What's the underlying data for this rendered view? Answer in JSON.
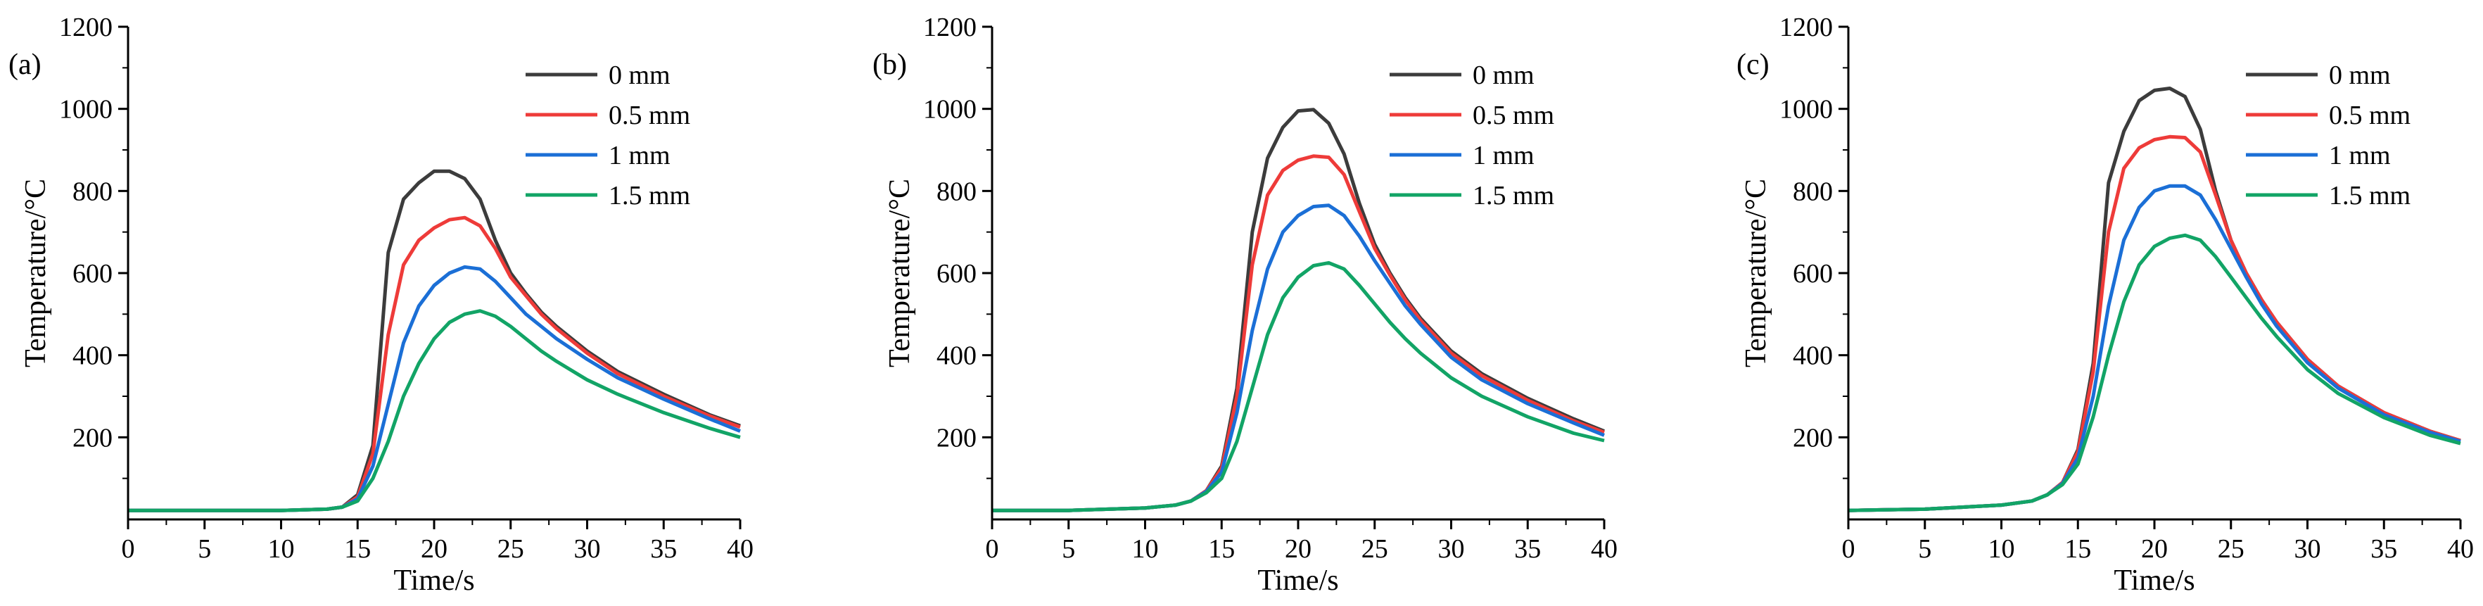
{
  "figure": {
    "colors": {
      "0 mm": "#3c3c3c",
      "0.5 mm": "#ee3b39",
      "1 mm": "#1b6fd6",
      "1.5 mm": "#12a466"
    }
  },
  "chart_data": [
    {
      "type": "line",
      "panel_label": "(a)",
      "xlabel": "Time/s",
      "ylabel": "Temperature/°C",
      "xlim": [
        0,
        40
      ],
      "ylim": [
        0,
        1200
      ],
      "x_ticks": [
        "0",
        "5",
        "10",
        "15",
        "20",
        "25",
        "30",
        "35",
        "40"
      ],
      "y_ticks": [
        "200",
        "400",
        "600",
        "800",
        "1000",
        "1200"
      ],
      "legend_position": "top-right",
      "series": [
        {
          "name": "0 mm",
          "color": "#3c3c3c",
          "x": [
            0,
            5,
            10,
            13,
            14,
            15,
            16,
            17,
            18,
            19,
            20,
            21,
            22,
            23,
            24,
            25,
            26,
            27,
            28,
            30,
            32,
            35,
            38,
            40
          ],
          "y": [
            22,
            22,
            22,
            25,
            30,
            60,
            180,
            650,
            780,
            820,
            848,
            848,
            830,
            780,
            680,
            600,
            550,
            505,
            470,
            410,
            360,
            305,
            255,
            228
          ]
        },
        {
          "name": "0.5 mm",
          "color": "#ee3b39",
          "x": [
            0,
            5,
            10,
            13,
            14,
            15,
            16,
            17,
            18,
            19,
            20,
            21,
            22,
            23,
            24,
            25,
            26,
            27,
            28,
            30,
            32,
            35,
            38,
            40
          ],
          "y": [
            22,
            22,
            22,
            25,
            30,
            55,
            160,
            450,
            620,
            680,
            710,
            730,
            735,
            715,
            660,
            590,
            545,
            500,
            465,
            405,
            355,
            300,
            252,
            225
          ]
        },
        {
          "name": "1 mm",
          "color": "#1b6fd6",
          "x": [
            0,
            5,
            10,
            13,
            14,
            15,
            16,
            17,
            18,
            19,
            20,
            21,
            22,
            23,
            24,
            25,
            26,
            27,
            28,
            30,
            32,
            35,
            38,
            40
          ],
          "y": [
            22,
            22,
            22,
            25,
            30,
            50,
            130,
            280,
            430,
            520,
            570,
            600,
            615,
            610,
            580,
            540,
            500,
            470,
            440,
            390,
            345,
            293,
            245,
            215
          ]
        },
        {
          "name": "1.5 mm",
          "color": "#12a466",
          "x": [
            0,
            5,
            10,
            13,
            14,
            15,
            16,
            17,
            18,
            19,
            20,
            21,
            22,
            23,
            24,
            25,
            26,
            27,
            28,
            30,
            32,
            35,
            38,
            40
          ],
          "y": [
            22,
            22,
            22,
            25,
            30,
            45,
            100,
            190,
            300,
            380,
            440,
            480,
            500,
            508,
            495,
            470,
            440,
            410,
            385,
            340,
            305,
            260,
            222,
            200
          ]
        }
      ]
    },
    {
      "type": "line",
      "panel_label": "(b)",
      "xlabel": "Time/s",
      "ylabel": "Temperature/°C",
      "xlim": [
        0,
        40
      ],
      "ylim": [
        0,
        1200
      ],
      "x_ticks": [
        "0",
        "5",
        "10",
        "15",
        "20",
        "25",
        "30",
        "35",
        "40"
      ],
      "y_ticks": [
        "200",
        "400",
        "600",
        "800",
        "1000",
        "1200"
      ],
      "legend_position": "top-right",
      "series": [
        {
          "name": "0 mm",
          "color": "#3c3c3c",
          "x": [
            0,
            5,
            10,
            12,
            13,
            14,
            15,
            16,
            17,
            18,
            19,
            20,
            21,
            22,
            23,
            24,
            25,
            26,
            27,
            28,
            30,
            32,
            35,
            38,
            40
          ],
          "y": [
            22,
            22,
            28,
            35,
            45,
            70,
            130,
            320,
            700,
            880,
            955,
            995,
            998,
            965,
            890,
            770,
            670,
            600,
            540,
            490,
            410,
            355,
            295,
            245,
            215
          ]
        },
        {
          "name": "0.5 mm",
          "color": "#ee3b39",
          "x": [
            0,
            5,
            10,
            12,
            13,
            14,
            15,
            16,
            17,
            18,
            19,
            20,
            21,
            22,
            23,
            24,
            25,
            26,
            27,
            28,
            30,
            32,
            35,
            38,
            40
          ],
          "y": [
            22,
            22,
            28,
            35,
            45,
            70,
            125,
            300,
            620,
            790,
            850,
            875,
            885,
            882,
            840,
            750,
            660,
            595,
            535,
            485,
            405,
            350,
            290,
            240,
            212
          ]
        },
        {
          "name": "1 mm",
          "color": "#1b6fd6",
          "x": [
            0,
            5,
            10,
            12,
            13,
            14,
            15,
            16,
            17,
            18,
            19,
            20,
            21,
            22,
            23,
            24,
            25,
            26,
            27,
            28,
            30,
            32,
            35,
            38,
            40
          ],
          "y": [
            22,
            22,
            28,
            35,
            45,
            68,
            115,
            260,
            460,
            610,
            700,
            740,
            762,
            765,
            740,
            690,
            630,
            575,
            520,
            475,
            395,
            340,
            282,
            235,
            205
          ]
        },
        {
          "name": "1.5 mm",
          "color": "#12a466",
          "x": [
            0,
            5,
            10,
            12,
            13,
            14,
            15,
            16,
            17,
            18,
            19,
            20,
            21,
            22,
            23,
            24,
            25,
            26,
            27,
            28,
            30,
            32,
            35,
            38,
            40
          ],
          "y": [
            22,
            22,
            28,
            35,
            45,
            65,
            100,
            190,
            320,
            450,
            540,
            590,
            618,
            625,
            610,
            570,
            525,
            480,
            440,
            405,
            345,
            300,
            250,
            210,
            192
          ]
        }
      ]
    },
    {
      "type": "line",
      "panel_label": "(c)",
      "xlabel": "Time/s",
      "ylabel": "Temperature/°C",
      "xlim": [
        0,
        40
      ],
      "ylim": [
        0,
        1200
      ],
      "x_ticks": [
        "0",
        "5",
        "10",
        "15",
        "20",
        "25",
        "30",
        "35",
        "40"
      ],
      "y_ticks": [
        "200",
        "400",
        "600",
        "800",
        "1000",
        "1200"
      ],
      "legend_position": "top-right",
      "series": [
        {
          "name": "0 mm",
          "color": "#3c3c3c",
          "x": [
            0,
            5,
            10,
            12,
            13,
            14,
            15,
            16,
            17,
            18,
            19,
            20,
            21,
            22,
            23,
            24,
            25,
            26,
            27,
            28,
            30,
            32,
            35,
            38,
            40
          ],
          "y": [
            22,
            25,
            35,
            45,
            60,
            90,
            170,
            380,
            820,
            945,
            1020,
            1045,
            1050,
            1030,
            950,
            800,
            680,
            600,
            535,
            480,
            390,
            325,
            260,
            215,
            192
          ]
        },
        {
          "name": "0.5 mm",
          "color": "#ee3b39",
          "x": [
            0,
            5,
            10,
            12,
            13,
            14,
            15,
            16,
            17,
            18,
            19,
            20,
            21,
            22,
            23,
            24,
            25,
            26,
            27,
            28,
            30,
            32,
            35,
            38,
            40
          ],
          "y": [
            22,
            25,
            35,
            45,
            60,
            90,
            165,
            360,
            700,
            855,
            905,
            925,
            932,
            930,
            895,
            790,
            680,
            600,
            535,
            480,
            390,
            325,
            260,
            215,
            192
          ]
        },
        {
          "name": "1 mm",
          "color": "#1b6fd6",
          "x": [
            0,
            5,
            10,
            12,
            13,
            14,
            15,
            16,
            17,
            18,
            19,
            20,
            21,
            22,
            23,
            24,
            25,
            26,
            27,
            28,
            30,
            32,
            35,
            38,
            40
          ],
          "y": [
            22,
            25,
            35,
            45,
            60,
            88,
            150,
            300,
            520,
            680,
            760,
            800,
            812,
            812,
            790,
            730,
            660,
            590,
            525,
            470,
            382,
            320,
            255,
            212,
            190
          ]
        },
        {
          "name": "1.5 mm",
          "color": "#12a466",
          "x": [
            0,
            5,
            10,
            12,
            13,
            14,
            15,
            16,
            17,
            18,
            19,
            20,
            21,
            22,
            23,
            24,
            25,
            26,
            27,
            28,
            30,
            32,
            35,
            38,
            40
          ],
          "y": [
            22,
            25,
            35,
            45,
            60,
            85,
            135,
            250,
            400,
            530,
            620,
            665,
            685,
            692,
            680,
            640,
            590,
            540,
            490,
            445,
            365,
            307,
            248,
            205,
            185
          ]
        }
      ]
    }
  ]
}
